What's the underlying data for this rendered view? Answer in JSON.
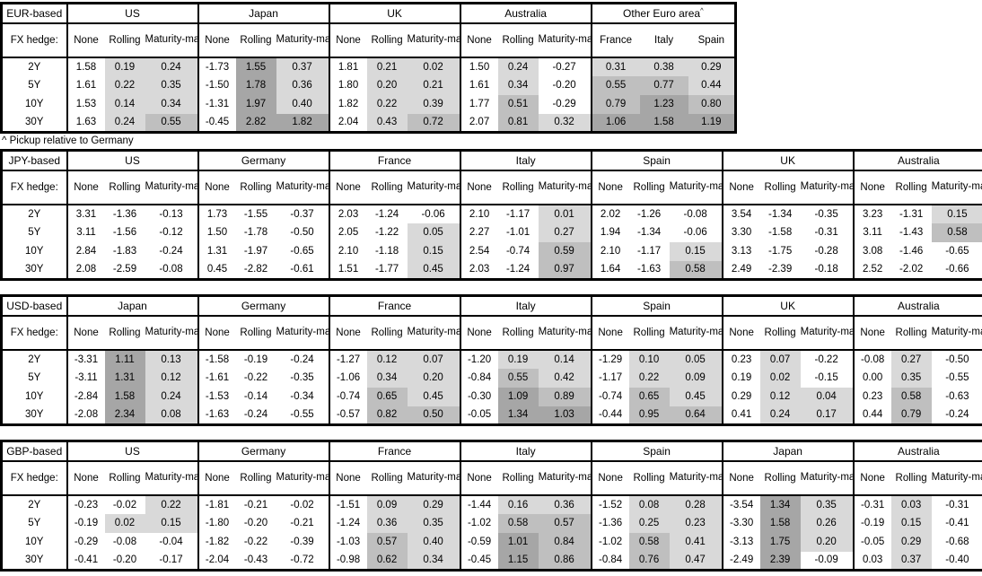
{
  "footnote": "^ Pickup relative to Germany",
  "fx_hedge_label": "FX hedge:",
  "col_headers": [
    "None",
    "Rolling",
    "Maturity-matched"
  ],
  "row_labels": [
    "2Y",
    "5Y",
    "10Y",
    "30Y"
  ],
  "shading_colors": {
    "pos_low": "#d9d9d9",
    "pos_mid": "#bfbfbf",
    "pos_high": "#a6a6a6",
    "negative": "#ffffff"
  },
  "shading_rule": {
    "negative": "white",
    "0_to_0.5": "light",
    "0.5_to_1": "mid",
    "1_and_up": "dark",
    "none_column": "never shaded"
  },
  "tables": [
    {
      "base": "EUR-based",
      "groups": [
        {
          "name": "US",
          "rows": [
            [
              "1.58",
              "0.19",
              "0.24"
            ],
            [
              "1.61",
              "0.22",
              "0.35"
            ],
            [
              "1.53",
              "0.14",
              "0.34"
            ],
            [
              "1.63",
              "0.24",
              "0.55"
            ]
          ]
        },
        {
          "name": "Japan",
          "rows": [
            [
              "-1.73",
              "1.55",
              "0.37"
            ],
            [
              "-1.50",
              "1.78",
              "0.36"
            ],
            [
              "-1.31",
              "1.97",
              "0.40"
            ],
            [
              "-0.45",
              "2.82",
              "1.82"
            ]
          ]
        },
        {
          "name": "UK",
          "rows": [
            [
              "1.81",
              "0.21",
              "0.02"
            ],
            [
              "1.80",
              "0.20",
              "0.21"
            ],
            [
              "1.82",
              "0.22",
              "0.39"
            ],
            [
              "2.04",
              "0.43",
              "0.72"
            ]
          ]
        },
        {
          "name": "Australia",
          "rows": [
            [
              "1.50",
              "0.24",
              "-0.27"
            ],
            [
              "1.61",
              "0.34",
              "-0.20"
            ],
            [
              "1.77",
              "0.51",
              "-0.29"
            ],
            [
              "2.07",
              "0.81",
              "0.32"
            ]
          ]
        },
        {
          "name": "Other Euro area",
          "sup": "^",
          "cols": [
            "France",
            "Italy",
            "Spain"
          ],
          "rows": [
            [
              "0.31",
              "0.38",
              "0.29"
            ],
            [
              "0.55",
              "0.77",
              "0.44"
            ],
            [
              "0.79",
              "1.23",
              "0.80"
            ],
            [
              "1.06",
              "1.58",
              "1.19"
            ]
          ]
        }
      ]
    },
    {
      "base": "JPY-based",
      "groups": [
        {
          "name": "US",
          "rows": [
            [
              "3.31",
              "-1.36",
              "-0.13"
            ],
            [
              "3.11",
              "-1.56",
              "-0.12"
            ],
            [
              "2.84",
              "-1.83",
              "-0.24"
            ],
            [
              "2.08",
              "-2.59",
              "-0.08"
            ]
          ]
        },
        {
          "name": "Germany",
          "rows": [
            [
              "1.73",
              "-1.55",
              "-0.37"
            ],
            [
              "1.50",
              "-1.78",
              "-0.50"
            ],
            [
              "1.31",
              "-1.97",
              "-0.65"
            ],
            [
              "0.45",
              "-2.82",
              "-0.61"
            ]
          ]
        },
        {
          "name": "France",
          "rows": [
            [
              "2.03",
              "-1.24",
              "-0.06"
            ],
            [
              "2.05",
              "-1.22",
              "0.05"
            ],
            [
              "2.10",
              "-1.18",
              "0.15"
            ],
            [
              "1.51",
              "-1.77",
              "0.45"
            ]
          ]
        },
        {
          "name": "Italy",
          "rows": [
            [
              "2.10",
              "-1.17",
              "0.01"
            ],
            [
              "2.27",
              "-1.01",
              "0.27"
            ],
            [
              "2.54",
              "-0.74",
              "0.59"
            ],
            [
              "2.03",
              "-1.24",
              "0.97"
            ]
          ]
        },
        {
          "name": "Spain",
          "rows": [
            [
              "2.02",
              "-1.26",
              "-0.08"
            ],
            [
              "1.94",
              "-1.34",
              "-0.06"
            ],
            [
              "2.10",
              "-1.17",
              "0.15"
            ],
            [
              "1.64",
              "-1.63",
              "0.58"
            ]
          ]
        },
        {
          "name": "UK",
          "rows": [
            [
              "3.54",
              "-1.34",
              "-0.35"
            ],
            [
              "3.30",
              "-1.58",
              "-0.31"
            ],
            [
              "3.13",
              "-1.75",
              "-0.28"
            ],
            [
              "2.49",
              "-2.39",
              "-0.18"
            ]
          ]
        },
        {
          "name": "Australia",
          "rows": [
            [
              "3.23",
              "-1.31",
              "0.15"
            ],
            [
              "3.11",
              "-1.43",
              "0.58"
            ],
            [
              "3.08",
              "-1.46",
              "-0.65"
            ],
            [
              "2.52",
              "-2.02",
              "-0.66"
            ]
          ]
        }
      ]
    },
    {
      "base": "USD-based",
      "groups": [
        {
          "name": "Japan",
          "rows": [
            [
              "-3.31",
              "1.11",
              "0.13"
            ],
            [
              "-3.11",
              "1.31",
              "0.12"
            ],
            [
              "-2.84",
              "1.58",
              "0.24"
            ],
            [
              "-2.08",
              "2.34",
              "0.08"
            ]
          ]
        },
        {
          "name": "Germany",
          "rows": [
            [
              "-1.58",
              "-0.19",
              "-0.24"
            ],
            [
              "-1.61",
              "-0.22",
              "-0.35"
            ],
            [
              "-1.53",
              "-0.14",
              "-0.34"
            ],
            [
              "-1.63",
              "-0.24",
              "-0.55"
            ]
          ]
        },
        {
          "name": "France",
          "rows": [
            [
              "-1.27",
              "0.12",
              "0.07"
            ],
            [
              "-1.06",
              "0.34",
              "0.20"
            ],
            [
              "-0.74",
              "0.65",
              "0.45"
            ],
            [
              "-0.57",
              "0.82",
              "0.50"
            ]
          ]
        },
        {
          "name": "Italy",
          "rows": [
            [
              "-1.20",
              "0.19",
              "0.14"
            ],
            [
              "-0.84",
              "0.55",
              "0.42"
            ],
            [
              "-0.30",
              "1.09",
              "0.89"
            ],
            [
              "-0.05",
              "1.34",
              "1.03"
            ]
          ]
        },
        {
          "name": "Spain",
          "rows": [
            [
              "-1.29",
              "0.10",
              "0.05"
            ],
            [
              "-1.17",
              "0.22",
              "0.09"
            ],
            [
              "-0.74",
              "0.65",
              "0.45"
            ],
            [
              "-0.44",
              "0.95",
              "0.64"
            ]
          ]
        },
        {
          "name": "UK",
          "rows": [
            [
              "0.23",
              "0.07",
              "-0.22"
            ],
            [
              "0.19",
              "0.02",
              "-0.15"
            ],
            [
              "0.29",
              "0.12",
              "0.04"
            ],
            [
              "0.41",
              "0.24",
              "0.17"
            ]
          ]
        },
        {
          "name": "Australia",
          "rows": [
            [
              "-0.08",
              "0.27",
              "-0.50"
            ],
            [
              "0.00",
              "0.35",
              "-0.55"
            ],
            [
              "0.23",
              "0.58",
              "-0.63"
            ],
            [
              "0.44",
              "0.79",
              "-0.24"
            ]
          ]
        }
      ]
    },
    {
      "base": "GBP-based",
      "groups": [
        {
          "name": "US",
          "rows": [
            [
              "-0.23",
              "-0.02",
              "0.22"
            ],
            [
              "-0.19",
              "0.02",
              "0.15"
            ],
            [
              "-0.29",
              "-0.08",
              "-0.04"
            ],
            [
              "-0.41",
              "-0.20",
              "-0.17"
            ]
          ]
        },
        {
          "name": "Germany",
          "rows": [
            [
              "-1.81",
              "-0.21",
              "-0.02"
            ],
            [
              "-1.80",
              "-0.20",
              "-0.21"
            ],
            [
              "-1.82",
              "-0.22",
              "-0.39"
            ],
            [
              "-2.04",
              "-0.43",
              "-0.72"
            ]
          ]
        },
        {
          "name": "France",
          "rows": [
            [
              "-1.51",
              "0.09",
              "0.29"
            ],
            [
              "-1.24",
              "0.36",
              "0.35"
            ],
            [
              "-1.03",
              "0.57",
              "0.40"
            ],
            [
              "-0.98",
              "0.62",
              "0.34"
            ]
          ]
        },
        {
          "name": "Italy",
          "rows": [
            [
              "-1.44",
              "0.16",
              "0.36"
            ],
            [
              "-1.02",
              "0.58",
              "0.57"
            ],
            [
              "-0.59",
              "1.01",
              "0.84"
            ],
            [
              "-0.45",
              "1.15",
              "0.86"
            ]
          ]
        },
        {
          "name": "Spain",
          "rows": [
            [
              "-1.52",
              "0.08",
              "0.28"
            ],
            [
              "-1.36",
              "0.25",
              "0.23"
            ],
            [
              "-1.02",
              "0.58",
              "0.41"
            ],
            [
              "-0.84",
              "0.76",
              "0.47"
            ]
          ]
        },
        {
          "name": "Japan",
          "rows": [
            [
              "-3.54",
              "1.34",
              "0.35"
            ],
            [
              "-3.30",
              "1.58",
              "0.26"
            ],
            [
              "-3.13",
              "1.75",
              "0.20"
            ],
            [
              "-2.49",
              "2.39",
              "-0.09"
            ]
          ]
        },
        {
          "name": "Australia",
          "rows": [
            [
              "-0.31",
              "0.03",
              "-0.31"
            ],
            [
              "-0.19",
              "0.15",
              "-0.41"
            ],
            [
              "-0.05",
              "0.29",
              "-0.68"
            ],
            [
              "0.03",
              "0.37",
              "-0.40"
            ]
          ]
        }
      ]
    }
  ]
}
